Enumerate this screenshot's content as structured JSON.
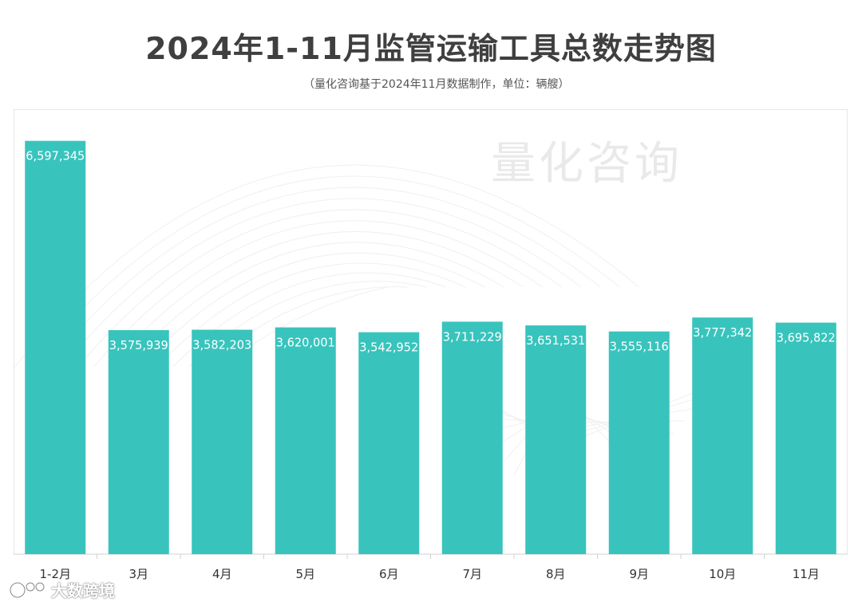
{
  "chart_data": {
    "type": "bar",
    "title": "2024年1-11月监管运输工具总数走势图",
    "subtitle": "（量化咨询基于2024年11月数据制作，单位：辆艘）",
    "categories": [
      "1-2月",
      "3月",
      "4月",
      "5月",
      "6月",
      "7月",
      "8月",
      "9月",
      "10月",
      "11月"
    ],
    "values": [
      6597345,
      3575939,
      3582203,
      3620001,
      3542952,
      3711229,
      3651531,
      3555116,
      3777342,
      3695822
    ],
    "value_labels": [
      "6,597,345",
      "3,575,939",
      "3,582,203",
      "3,620,001",
      "3,542,952",
      "3,711,229",
      "3,651,531",
      "3,555,116",
      "3,777,342",
      "3,695,822"
    ],
    "ylim": [
      0,
      7000000
    ],
    "bar_color": "#38c4bd",
    "grid": false,
    "legend": "none"
  },
  "watermark": {
    "text": "量化咨询",
    "brand": "大数跨境"
  },
  "colors": {
    "title": "#3f3f3f",
    "axis": "#d0d0d0",
    "label": "#333333",
    "value_label": "#ffffff"
  }
}
